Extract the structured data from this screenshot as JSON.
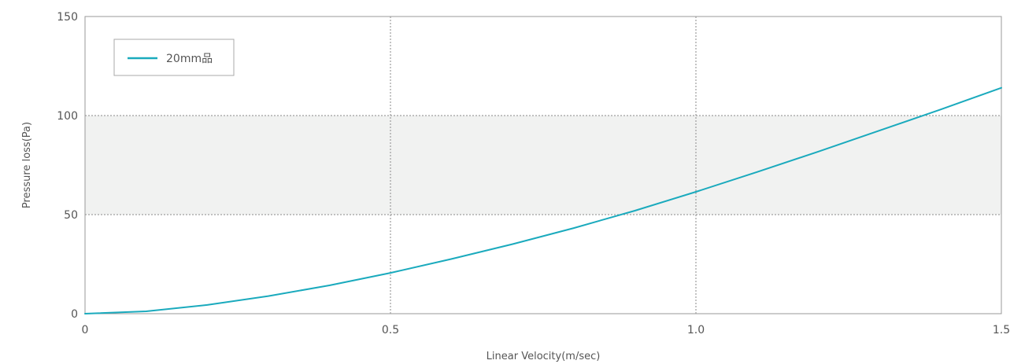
{
  "chart_data": {
    "type": "line",
    "title": "",
    "xlabel": "Linear Velocity(m/sec)",
    "ylabel": "Pressure loss(Pa)",
    "xlim": [
      0,
      1.5
    ],
    "ylim": [
      0,
      150
    ],
    "x_ticks": [
      {
        "value": 0,
        "label": "0"
      },
      {
        "value": 0.5,
        "label": "0.5"
      },
      {
        "value": 1.0,
        "label": "1.0"
      },
      {
        "value": 1.5,
        "label": "1.5"
      }
    ],
    "y_ticks": [
      {
        "value": 0,
        "label": "0"
      },
      {
        "value": 50,
        "label": "50"
      },
      {
        "value": 100,
        "label": "100"
      },
      {
        "value": 150,
        "label": "150"
      }
    ],
    "grid": "dotted",
    "shaded_band": {
      "y_from": 50,
      "y_to": 100,
      "color": "#f1f2f1"
    },
    "legend_position": "top-left",
    "series": [
      {
        "name": "20mm品",
        "color": "#1aaabd",
        "x": [
          0,
          0.1,
          0.2,
          0.3,
          0.4,
          0.5,
          0.6,
          0.7,
          0.8,
          0.9,
          1.0,
          1.1,
          1.2,
          1.3,
          1.4,
          1.5
        ],
        "y": [
          0,
          1.2,
          4.4,
          8.9,
          14.3,
          20.6,
          27.6,
          35.1,
          43.2,
          52.0,
          61.5,
          71.5,
          81.8,
          92.4,
          103.0,
          114.0
        ]
      }
    ]
  }
}
